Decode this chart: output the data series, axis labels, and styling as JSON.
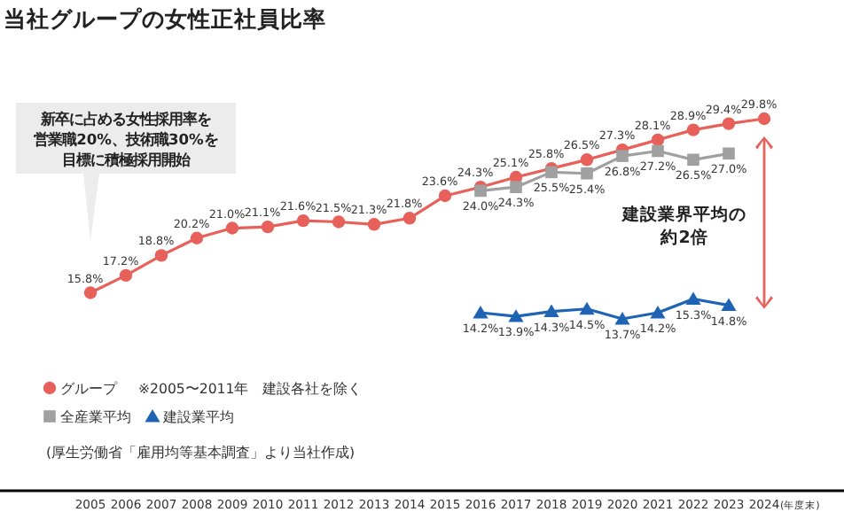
{
  "chart_data": {
    "type": "line",
    "title": "当社グループの女性正社員比率",
    "xlabel": "(年度末)",
    "categories": [
      "2005",
      "2006",
      "2007",
      "2008",
      "2009",
      "2010",
      "2011",
      "2012",
      "2013",
      "2014",
      "2015",
      "2016",
      "2017",
      "2018",
      "2019",
      "2020",
      "2021",
      "2022",
      "2023",
      "2024"
    ],
    "series": [
      {
        "name": "グループ",
        "color": "#e8605a",
        "marker": "circle",
        "values": [
          15.8,
          17.2,
          18.8,
          20.2,
          21.0,
          21.1,
          21.6,
          21.5,
          21.3,
          21.8,
          23.6,
          24.3,
          25.1,
          25.8,
          26.5,
          27.3,
          28.1,
          28.9,
          29.4,
          29.8
        ],
        "value_labels": [
          "15.8%",
          "17.2%",
          "18.8%",
          "20.2%",
          "21.0%",
          "21.1%",
          "21.6%",
          "21.5%",
          "21.3%",
          "21.8%",
          "23.6%",
          "24.3%",
          "25.1%",
          "25.8%",
          "26.5%",
          "27.3%",
          "28.1%",
          "28.9%",
          "29.4%",
          "29.8%"
        ]
      },
      {
        "name": "全産業平均",
        "color": "#a0a0a0",
        "marker": "square",
        "values": [
          null,
          null,
          null,
          null,
          null,
          null,
          null,
          null,
          null,
          null,
          null,
          24.0,
          24.3,
          25.5,
          25.4,
          26.8,
          27.2,
          26.5,
          27.0,
          null
        ],
        "value_labels": [
          null,
          null,
          null,
          null,
          null,
          null,
          null,
          null,
          null,
          null,
          null,
          "24.0%",
          "24.3%",
          "25.5%",
          "25.4%",
          "26.8%",
          "27.2%",
          "26.5%",
          "27.0%",
          null
        ]
      },
      {
        "name": "建設業平均",
        "color": "#1f63b5",
        "marker": "triangle",
        "values": [
          null,
          null,
          null,
          null,
          null,
          null,
          null,
          null,
          null,
          null,
          null,
          14.2,
          13.9,
          14.3,
          14.5,
          13.7,
          14.2,
          15.3,
          14.8,
          null
        ],
        "value_labels": [
          null,
          null,
          null,
          null,
          null,
          null,
          null,
          null,
          null,
          null,
          null,
          "14.2%",
          "13.9%",
          "14.3%",
          "14.5%",
          "13.7%",
          "14.2%",
          "15.3%",
          "14.8%",
          null
        ]
      }
    ],
    "legend": "bottom left",
    "annotations": [
      "新卒に占める女性採用率を",
      "営業職20%、技術職30%を",
      "目標に積極採用開始",
      "※2005〜2011年　建設各社を除く",
      "建設業界平均の",
      "約2倍",
      "(厚生労働省「雇用均等基本調査」より当社作成)"
    ]
  }
}
